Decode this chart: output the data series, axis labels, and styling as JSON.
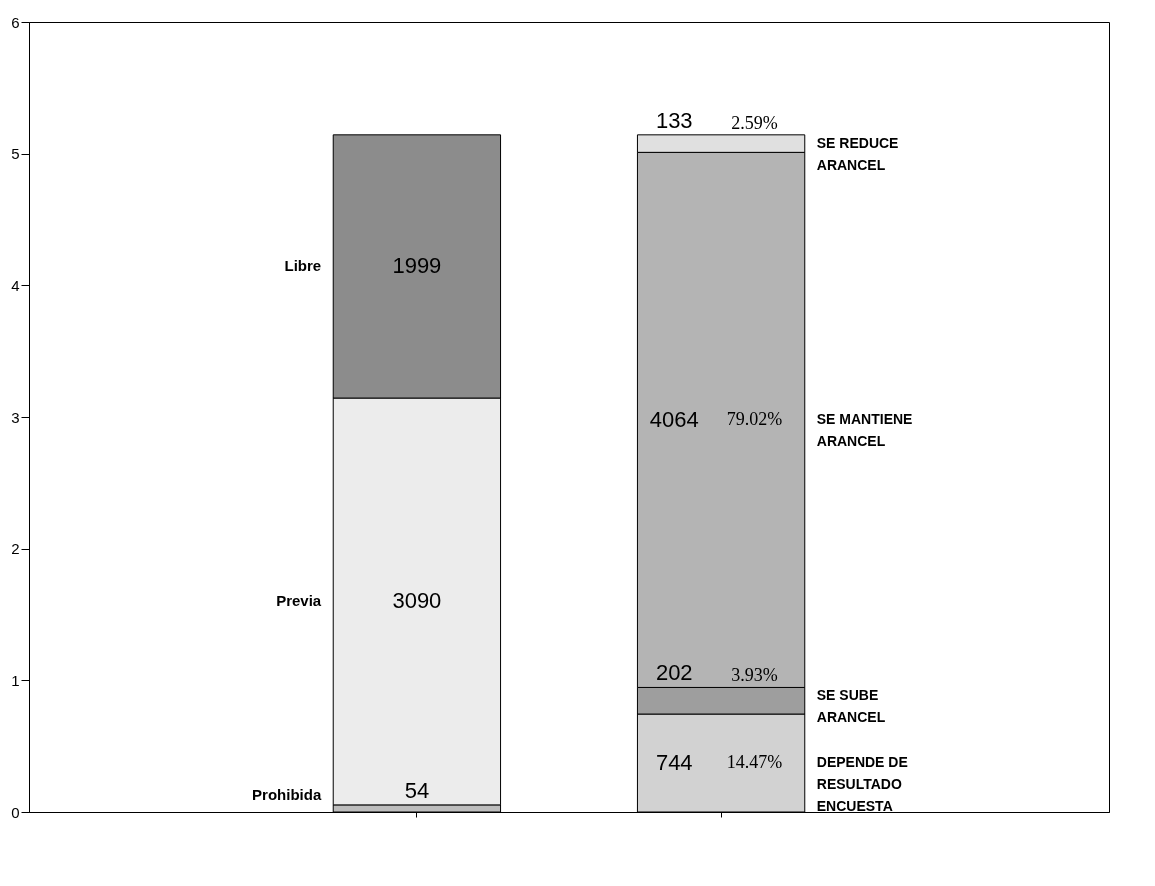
{
  "chart_data": {
    "type": "bar",
    "stacked": true,
    "categories": [
      null,
      null
    ],
    "series": [
      {
        "name": "Prohibida",
        "color": "#bdbdbd",
        "values": [
          0.054,
          null
        ]
      },
      {
        "name": "Previa",
        "color": "#ececec",
        "values": [
          3.09,
          null
        ]
      },
      {
        "name": "Libre",
        "color": "#8c8c8c",
        "values": [
          1.999,
          null
        ]
      },
      {
        "name": "DEPENDE DE\nRESULTADO\nENCUESTA",
        "color": "#d2d2d2",
        "values": [
          null,
          0.744
        ]
      },
      {
        "name": "SE SUBE\nARANCEL",
        "color": "#9e9e9e",
        "values": [
          null,
          0.202
        ]
      },
      {
        "name": "SE MANTIENE\nARANCEL",
        "color": "#b4b4b4",
        "values": [
          null,
          4.064
        ]
      },
      {
        "name": "SE REDUCE\nARANCEL",
        "color": "#e0e0e0",
        "values": [
          null,
          0.133
        ]
      }
    ],
    "annotations": [
      "54",
      "3090",
      "1999",
      "744",
      "202",
      "4064",
      "133",
      "14.47%",
      "3.93%",
      "79.02%",
      "2.59%"
    ],
    "ylim": [
      0,
      6
    ],
    "yticks": [
      0,
      1,
      2,
      3,
      4,
      5,
      6
    ],
    "grid": false,
    "legend": false,
    "tick_labels": "y"
  }
}
